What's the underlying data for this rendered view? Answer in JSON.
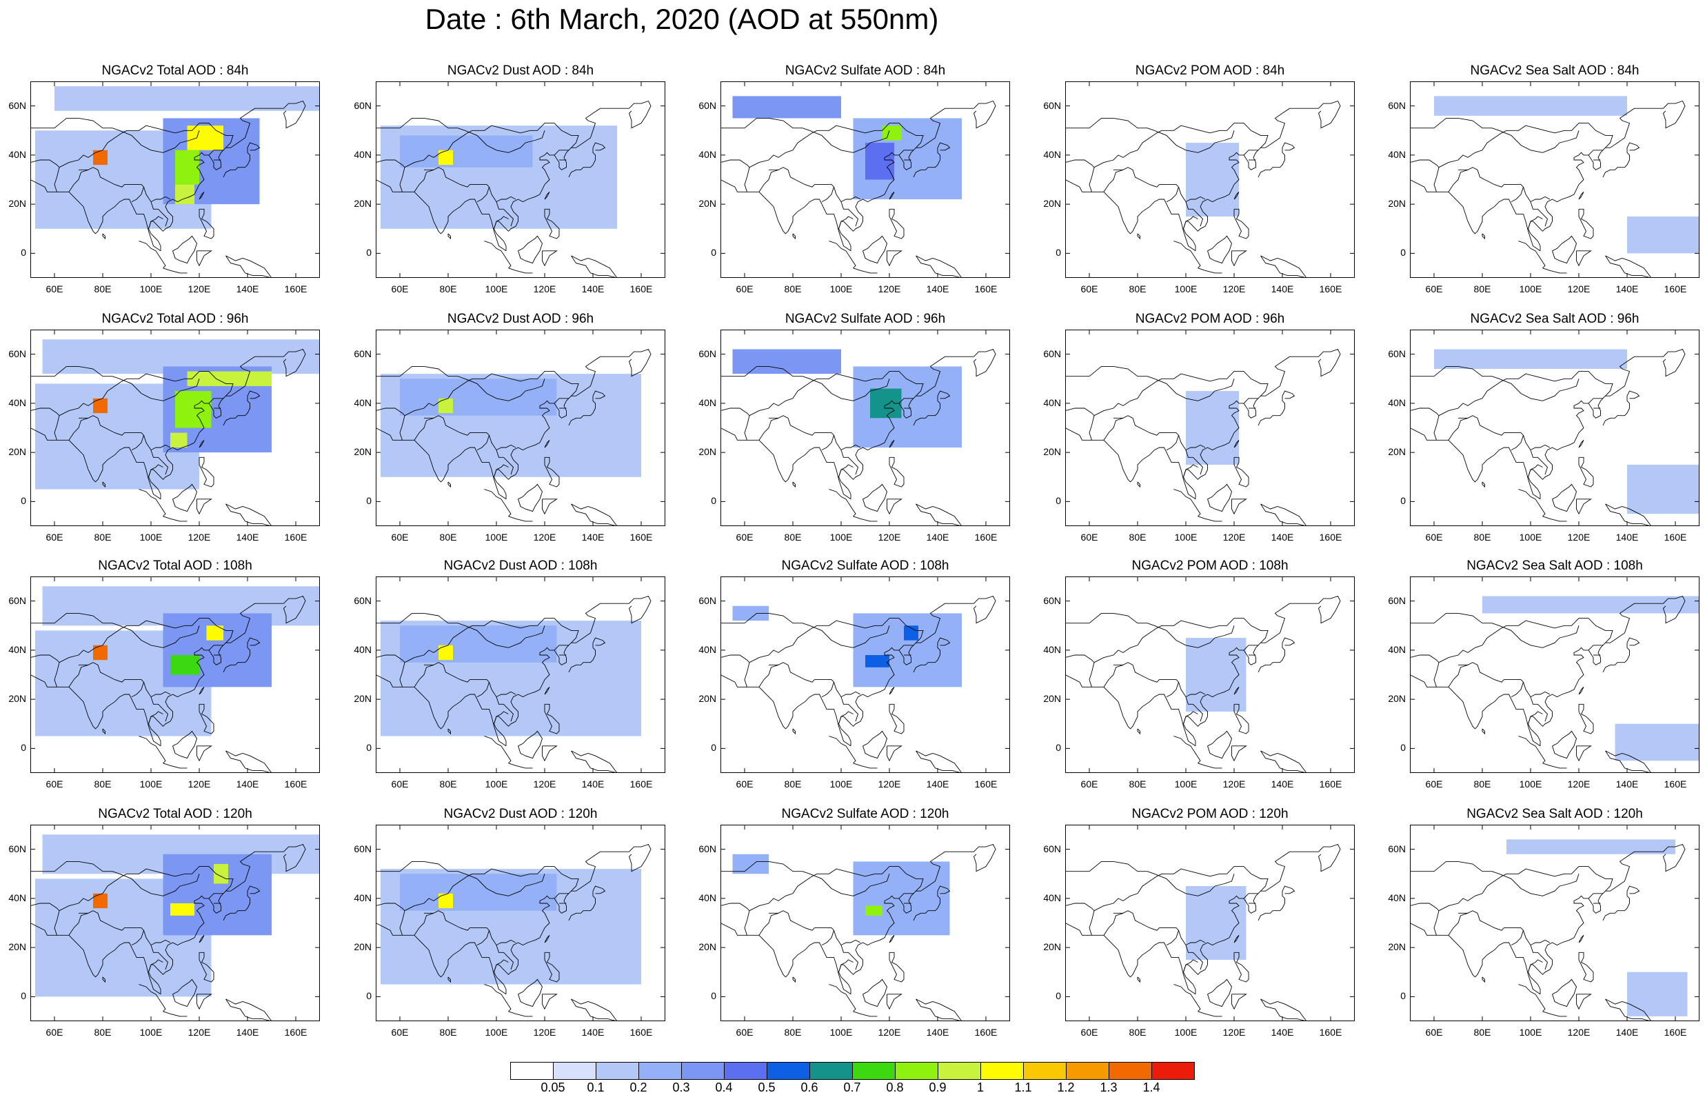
{
  "title": "Date : 6th March, 2020 (AOD at 550nm)",
  "columns": [
    {
      "key": "total",
      "label": "NGACv2 Total AOD"
    },
    {
      "key": "dust",
      "label": "NGACv2 Dust AOD"
    },
    {
      "key": "sulfate",
      "label": "NGACv2 Sulfate AOD"
    },
    {
      "key": "pom",
      "label": "NGACv2 POM AOD"
    },
    {
      "key": "seasalt",
      "label": "NGACv2 Sea Salt AOD"
    }
  ],
  "rows": [
    "84h",
    "96h",
    "108h",
    "120h"
  ],
  "panel_titles": [
    [
      "NGACv2 Total AOD : 84h",
      "NGACv2 Dust AOD : 84h",
      "NGACv2 Sulfate AOD : 84h",
      "NGACv2 POM AOD : 84h",
      "NGACv2 Sea Salt AOD : 84h"
    ],
    [
      "NGACv2 Total AOD : 96h",
      "NGACv2 Dust AOD : 96h",
      "NGACv2 Sulfate AOD : 96h",
      "NGACv2 POM AOD : 96h",
      "NGACv2 Sea Salt AOD : 96h"
    ],
    [
      "NGACv2 Total AOD : 108h",
      "NGACv2 Dust AOD : 108h",
      "NGACv2 Sulfate AOD : 108h",
      "NGACv2 POM AOD : 108h",
      "NGACv2 Sea Salt AOD : 108h"
    ],
    [
      "NGACv2 Total AOD : 120h",
      "NGACv2 Dust AOD : 120h",
      "NGACv2 Sulfate AOD : 120h",
      "NGACv2 POM AOD : 120h",
      "NGACv2 Sea Salt  AOD : 120h"
    ]
  ],
  "lat_ticks": [
    "60N",
    "40N",
    "20N",
    "0"
  ],
  "lon_ticks": [
    "60E",
    "80E",
    "100E",
    "120E",
    "140E",
    "160E"
  ],
  "lat_values": [
    60,
    40,
    20,
    0
  ],
  "lon_values": [
    60,
    80,
    100,
    120,
    140,
    160
  ],
  "map_extent": {
    "lon": [
      50,
      170
    ],
    "lat": [
      -10,
      70
    ]
  },
  "colorbar": {
    "labels": [
      "0.05",
      "0.1",
      "0.2",
      "0.3",
      "0.4",
      "0.5",
      "0.6",
      "0.7",
      "0.8",
      "0.9",
      "1",
      "1.1",
      "1.2",
      "1.3",
      "1.4"
    ],
    "colors": [
      "#ffffff",
      "#d7e1fb",
      "#b4c8f8",
      "#94b0f6",
      "#7b97f3",
      "#5c6ff0",
      "#0d5fe4",
      "#14938a",
      "#3cd810",
      "#8ff20e",
      "#c8f23c",
      "#fffb00",
      "#fac800",
      "#f59b00",
      "#f06a00",
      "#eb1c0a"
    ]
  },
  "aod_fields": {
    "total": [
      [
        {
          "lon": [
            60,
            170
          ],
          "lat": [
            58,
            68
          ],
          "v": 0.12
        },
        {
          "lon": [
            52,
            125
          ],
          "lat": [
            10,
            50
          ],
          "v": 0.14
        },
        {
          "lon": [
            105,
            145
          ],
          "lat": [
            20,
            55
          ],
          "v": 0.3
        },
        {
          "lon": [
            76,
            82
          ],
          "lat": [
            36,
            42
          ],
          "v": 1.3
        },
        {
          "lon": [
            115,
            130
          ],
          "lat": [
            42,
            52
          ],
          "v": 1.0
        },
        {
          "lon": [
            110,
            120
          ],
          "lat": [
            28,
            42
          ],
          "v": 0.8
        },
        {
          "lon": [
            110,
            118
          ],
          "lat": [
            20,
            28
          ],
          "v": 0.9
        }
      ],
      [
        {
          "lon": [
            55,
            170
          ],
          "lat": [
            52,
            66
          ],
          "v": 0.15
        },
        {
          "lon": [
            52,
            120
          ],
          "lat": [
            5,
            48
          ],
          "v": 0.14
        },
        {
          "lon": [
            105,
            150
          ],
          "lat": [
            20,
            55
          ],
          "v": 0.3
        },
        {
          "lon": [
            76,
            82
          ],
          "lat": [
            36,
            42
          ],
          "v": 1.3
        },
        {
          "lon": [
            115,
            150
          ],
          "lat": [
            47,
            53
          ],
          "v": 0.9
        },
        {
          "lon": [
            110,
            125
          ],
          "lat": [
            30,
            45
          ],
          "v": 0.8
        },
        {
          "lon": [
            108,
            115
          ],
          "lat": [
            22,
            28
          ],
          "v": 0.9
        }
      ],
      [
        {
          "lon": [
            55,
            170
          ],
          "lat": [
            50,
            66
          ],
          "v": 0.15
        },
        {
          "lon": [
            52,
            125
          ],
          "lat": [
            5,
            48
          ],
          "v": 0.14
        },
        {
          "lon": [
            105,
            150
          ],
          "lat": [
            25,
            55
          ],
          "v": 0.3
        },
        {
          "lon": [
            76,
            82
          ],
          "lat": [
            36,
            42
          ],
          "v": 1.3
        },
        {
          "lon": [
            123,
            130
          ],
          "lat": [
            44,
            50
          ],
          "v": 1.0
        },
        {
          "lon": [
            108,
            120
          ],
          "lat": [
            30,
            38
          ],
          "v": 0.7
        }
      ],
      [
        {
          "lon": [
            55,
            170
          ],
          "lat": [
            50,
            66
          ],
          "v": 0.15
        },
        {
          "lon": [
            52,
            125
          ],
          "lat": [
            0,
            48
          ],
          "v": 0.14
        },
        {
          "lon": [
            105,
            150
          ],
          "lat": [
            25,
            58
          ],
          "v": 0.3
        },
        {
          "lon": [
            76,
            82
          ],
          "lat": [
            36,
            42
          ],
          "v": 1.3
        },
        {
          "lon": [
            108,
            118
          ],
          "lat": [
            33,
            38
          ],
          "v": 1.0
        },
        {
          "lon": [
            126,
            132
          ],
          "lat": [
            46,
            54
          ],
          "v": 0.9
        }
      ]
    ],
    "dust": [
      [
        {
          "lon": [
            52,
            150
          ],
          "lat": [
            10,
            52
          ],
          "v": 0.1
        },
        {
          "lon": [
            60,
            115
          ],
          "lat": [
            35,
            48
          ],
          "v": 0.2
        },
        {
          "lon": [
            76,
            82
          ],
          "lat": [
            36,
            42
          ],
          "v": 1.0
        }
      ],
      [
        {
          "lon": [
            52,
            160
          ],
          "lat": [
            10,
            52
          ],
          "v": 0.1
        },
        {
          "lon": [
            60,
            125
          ],
          "lat": [
            35,
            50
          ],
          "v": 0.2
        },
        {
          "lon": [
            76,
            82
          ],
          "lat": [
            36,
            42
          ],
          "v": 0.9
        }
      ],
      [
        {
          "lon": [
            52,
            160
          ],
          "lat": [
            5,
            52
          ],
          "v": 0.1
        },
        {
          "lon": [
            60,
            125
          ],
          "lat": [
            35,
            50
          ],
          "v": 0.2
        },
        {
          "lon": [
            76,
            82
          ],
          "lat": [
            36,
            42
          ],
          "v": 1.0
        }
      ],
      [
        {
          "lon": [
            52,
            160
          ],
          "lat": [
            5,
            52
          ],
          "v": 0.1
        },
        {
          "lon": [
            60,
            125
          ],
          "lat": [
            35,
            50
          ],
          "v": 0.2
        },
        {
          "lon": [
            76,
            82
          ],
          "lat": [
            36,
            42
          ],
          "v": 1.0
        }
      ]
    ],
    "sulfate": [
      [
        {
          "lon": [
            55,
            100
          ],
          "lat": [
            55,
            64
          ],
          "v": 0.3
        },
        {
          "lon": [
            105,
            150
          ],
          "lat": [
            22,
            55
          ],
          "v": 0.2
        },
        {
          "lon": [
            110,
            122
          ],
          "lat": [
            30,
            45
          ],
          "v": 0.4
        },
        {
          "lon": [
            117,
            125
          ],
          "lat": [
            46,
            52
          ],
          "v": 0.8
        }
      ],
      [
        {
          "lon": [
            55,
            100
          ],
          "lat": [
            52,
            62
          ],
          "v": 0.3
        },
        {
          "lon": [
            105,
            150
          ],
          "lat": [
            22,
            55
          ],
          "v": 0.2
        },
        {
          "lon": [
            112,
            125
          ],
          "lat": [
            34,
            46
          ],
          "v": 0.6
        }
      ],
      [
        {
          "lon": [
            55,
            70
          ],
          "lat": [
            52,
            58
          ],
          "v": 0.2
        },
        {
          "lon": [
            105,
            150
          ],
          "lat": [
            25,
            55
          ],
          "v": 0.2
        },
        {
          "lon": [
            110,
            120
          ],
          "lat": [
            33,
            38
          ],
          "v": 0.5
        },
        {
          "lon": [
            126,
            132
          ],
          "lat": [
            44,
            50
          ],
          "v": 0.5
        }
      ],
      [
        {
          "lon": [
            55,
            70
          ],
          "lat": [
            50,
            58
          ],
          "v": 0.2
        },
        {
          "lon": [
            105,
            145
          ],
          "lat": [
            25,
            55
          ],
          "v": 0.2
        },
        {
          "lon": [
            110,
            117
          ],
          "lat": [
            33,
            37
          ],
          "v": 0.8
        }
      ]
    ],
    "pom": [
      [
        {
          "lon": [
            100,
            122
          ],
          "lat": [
            15,
            45
          ],
          "v": 0.1
        }
      ],
      [
        {
          "lon": [
            100,
            122
          ],
          "lat": [
            15,
            45
          ],
          "v": 0.1
        }
      ],
      [
        {
          "lon": [
            100,
            125
          ],
          "lat": [
            15,
            45
          ],
          "v": 0.1
        }
      ],
      [
        {
          "lon": [
            100,
            125
          ],
          "lat": [
            15,
            45
          ],
          "v": 0.1
        }
      ]
    ],
    "seasalt": [
      [
        {
          "lon": [
            60,
            140
          ],
          "lat": [
            56,
            64
          ],
          "v": 0.1
        },
        {
          "lon": [
            140,
            170
          ],
          "lat": [
            0,
            15
          ],
          "v": 0.1
        }
      ],
      [
        {
          "lon": [
            60,
            140
          ],
          "lat": [
            54,
            62
          ],
          "v": 0.1
        },
        {
          "lon": [
            140,
            170
          ],
          "lat": [
            -5,
            15
          ],
          "v": 0.1
        }
      ],
      [
        {
          "lon": [
            80,
            170
          ],
          "lat": [
            55,
            62
          ],
          "v": 0.1
        },
        {
          "lon": [
            135,
            170
          ],
          "lat": [
            -5,
            10
          ],
          "v": 0.1
        }
      ],
      [
        {
          "lon": [
            90,
            160
          ],
          "lat": [
            58,
            64
          ],
          "v": 0.1
        },
        {
          "lon": [
            140,
            165
          ],
          "lat": [
            -8,
            10
          ],
          "v": 0.1
        }
      ]
    ]
  }
}
